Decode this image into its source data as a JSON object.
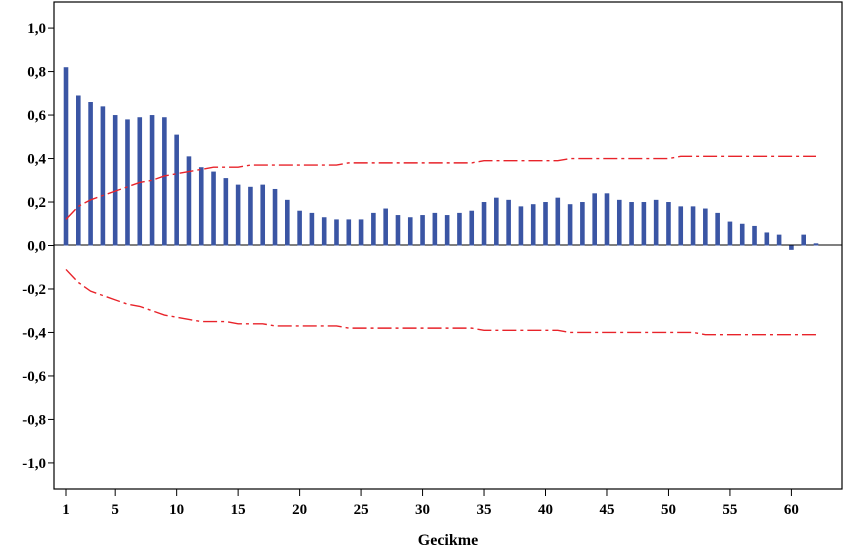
{
  "chart_data": {
    "type": "bar",
    "title": "",
    "xlabel": "Gecikme",
    "ylabel": "",
    "xlim": [
      0,
      63
    ],
    "ylim": [
      -1.12,
      1.12
    ],
    "x_ticks": [
      1,
      5,
      10,
      15,
      20,
      25,
      30,
      35,
      40,
      45,
      50,
      55,
      60
    ],
    "y_ticks": [
      {
        "value": 1.0,
        "label": "1,0"
      },
      {
        "value": 0.8,
        "label": "0,8"
      },
      {
        "value": 0.6,
        "label": "0,6"
      },
      {
        "value": 0.4,
        "label": "0,4"
      },
      {
        "value": 0.2,
        "label": "0,2"
      },
      {
        "value": 0.0,
        "label": "0,0"
      },
      {
        "value": -0.2,
        "label": "-0,2"
      },
      {
        "value": -0.4,
        "label": "-0,4"
      },
      {
        "value": -0.6,
        "label": "-0,6"
      },
      {
        "value": -0.8,
        "label": "-0,8"
      },
      {
        "value": -1.0,
        "label": "-1,0"
      }
    ],
    "lags": [
      1,
      2,
      3,
      4,
      5,
      6,
      7,
      8,
      9,
      10,
      11,
      12,
      13,
      14,
      15,
      16,
      17,
      18,
      19,
      20,
      21,
      22,
      23,
      24,
      25,
      26,
      27,
      28,
      29,
      30,
      31,
      32,
      33,
      34,
      35,
      36,
      37,
      38,
      39,
      40,
      41,
      42,
      43,
      44,
      45,
      46,
      47,
      48,
      49,
      50,
      51,
      52,
      53,
      54,
      55,
      56,
      57,
      58,
      59,
      60,
      61,
      62
    ],
    "acf": [
      0.82,
      0.69,
      0.66,
      0.64,
      0.6,
      0.58,
      0.59,
      0.6,
      0.59,
      0.51,
      0.41,
      0.36,
      0.34,
      0.31,
      0.28,
      0.27,
      0.28,
      0.26,
      0.21,
      0.16,
      0.15,
      0.13,
      0.12,
      0.12,
      0.12,
      0.15,
      0.17,
      0.14,
      0.13,
      0.14,
      0.15,
      0.14,
      0.15,
      0.16,
      0.2,
      0.22,
      0.21,
      0.18,
      0.19,
      0.2,
      0.22,
      0.19,
      0.2,
      0.24,
      0.24,
      0.21,
      0.2,
      0.2,
      0.21,
      0.2,
      0.18,
      0.18,
      0.17,
      0.15,
      0.11,
      0.1,
      0.09,
      0.06,
      0.05,
      -0.02,
      0.05,
      0.01
    ],
    "upper_bound": [
      0.12,
      0.18,
      0.21,
      0.23,
      0.25,
      0.27,
      0.29,
      0.3,
      0.32,
      0.33,
      0.34,
      0.35,
      0.36,
      0.36,
      0.36,
      0.37,
      0.37,
      0.37,
      0.37,
      0.37,
      0.37,
      0.37,
      0.37,
      0.38,
      0.38,
      0.38,
      0.38,
      0.38,
      0.38,
      0.38,
      0.38,
      0.38,
      0.38,
      0.38,
      0.39,
      0.39,
      0.39,
      0.39,
      0.39,
      0.39,
      0.39,
      0.4,
      0.4,
      0.4,
      0.4,
      0.4,
      0.4,
      0.4,
      0.4,
      0.4,
      0.41,
      0.41,
      0.41,
      0.41,
      0.41,
      0.41,
      0.41,
      0.41,
      0.41,
      0.41,
      0.41,
      0.41
    ],
    "lower_bound": [
      -0.11,
      -0.17,
      -0.21,
      -0.23,
      -0.25,
      -0.27,
      -0.28,
      -0.3,
      -0.32,
      -0.33,
      -0.34,
      -0.35,
      -0.35,
      -0.35,
      -0.36,
      -0.36,
      -0.36,
      -0.37,
      -0.37,
      -0.37,
      -0.37,
      -0.37,
      -0.37,
      -0.38,
      -0.38,
      -0.38,
      -0.38,
      -0.38,
      -0.38,
      -0.38,
      -0.38,
      -0.38,
      -0.38,
      -0.38,
      -0.39,
      -0.39,
      -0.39,
      -0.39,
      -0.39,
      -0.39,
      -0.39,
      -0.4,
      -0.4,
      -0.4,
      -0.4,
      -0.4,
      -0.4,
      -0.4,
      -0.4,
      -0.4,
      -0.4,
      -0.4,
      -0.41,
      -0.41,
      -0.41,
      -0.41,
      -0.41,
      -0.41,
      -0.41,
      -0.41,
      -0.41,
      -0.41
    ],
    "grid": false,
    "legend": "none",
    "colors": {
      "bars": "#3a55a4",
      "bounds": "#e8232a",
      "axis": "#000000"
    }
  }
}
